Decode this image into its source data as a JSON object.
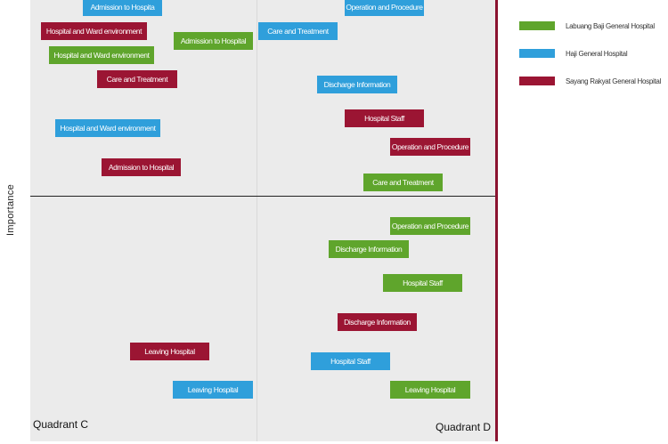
{
  "colors": {
    "green": "#5fa52c",
    "blue": "#2f9fdb",
    "red": "#9b1533"
  },
  "axis": {
    "y_label": "Importance"
  },
  "quadrants": {
    "c": "Quadrant C",
    "d": "Quadrant D"
  },
  "legend": [
    {
      "label": "Labuang Baji General Hospital",
      "color": "green"
    },
    {
      "label": "Haji General Hospital",
      "color": "blue"
    },
    {
      "label": "Sayang Rakyat General Hospital",
      "color": "red"
    }
  ],
  "boxes": [
    {
      "label": "Admission to Hospita",
      "color": "blue"
    },
    {
      "label": "Operation and Procedure",
      "color": "blue"
    },
    {
      "label": "Hospital and Ward environment",
      "color": "red"
    },
    {
      "label": "Admission to Hospital",
      "color": "green"
    },
    {
      "label": "Care and Treatment",
      "color": "blue"
    },
    {
      "label": "Hospital and Ward environment",
      "color": "green"
    },
    {
      "label": "Care and Treatment",
      "color": "red"
    },
    {
      "label": "Discharge Information",
      "color": "blue"
    },
    {
      "label": "Hospital Staff",
      "color": "red"
    },
    {
      "label": "Hospital and Ward environment",
      "color": "blue"
    },
    {
      "label": "Operation and Procedure",
      "color": "red"
    },
    {
      "label": "Admission to Hospital",
      "color": "red"
    },
    {
      "label": "Care and Treatment",
      "color": "green"
    },
    {
      "label": "Operation and Procedure",
      "color": "green"
    },
    {
      "label": "Discharge Information",
      "color": "green"
    },
    {
      "label": "Hospital Staff",
      "color": "green"
    },
    {
      "label": "Discharge Information",
      "color": "red"
    },
    {
      "label": "Leaving Hospital",
      "color": "red"
    },
    {
      "label": "Hospital Staff",
      "color": "blue"
    },
    {
      "label": "Leaving Hospital",
      "color": "blue"
    },
    {
      "label": "Leaving Hospital",
      "color": "green"
    }
  ]
}
